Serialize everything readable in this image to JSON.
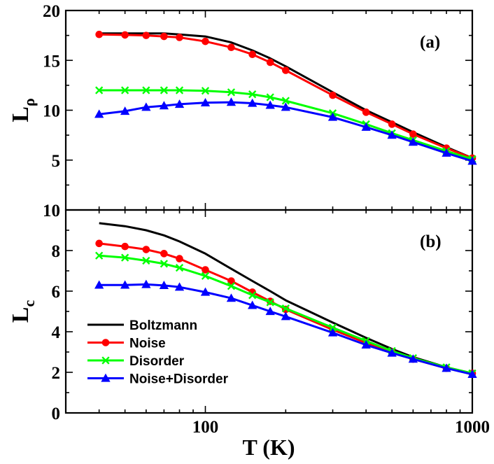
{
  "chart_data": {
    "type": "line",
    "xlabel": "T (K)",
    "xscale": "log",
    "xlim": [
      30,
      1000
    ],
    "xtick_labels": [
      "100",
      "1000"
    ],
    "colors": {
      "Boltzmann": "#000000",
      "Noise": "#ff0000",
      "Disorder": "#00ff00",
      "Noise+Disorder": "#0000ff"
    },
    "markers": {
      "Boltzmann": "none",
      "Noise": "circle",
      "Disorder": "x",
      "Noise+Disorder": "triangle"
    },
    "panels": [
      {
        "label": "(a)",
        "ylabel_main": "L",
        "ylabel_sub": "ρ",
        "ylim": [
          0,
          20
        ],
        "yticks": [
          5,
          10,
          15,
          20
        ],
        "ytick_labels": [
          "5",
          "10",
          "15",
          "20"
        ],
        "series": [
          {
            "name": "Boltzmann",
            "x": [
              40,
              50,
              60,
              70,
              80,
              100,
              125,
              150,
              175,
              200,
              300,
              400,
              500,
              600,
              800,
              1000
            ],
            "y": [
              17.7,
              17.7,
              17.7,
              17.7,
              17.6,
              17.4,
              16.8,
              16.0,
              15.2,
              14.4,
              11.8,
              10.0,
              8.8,
              7.8,
              6.3,
              5.2
            ]
          },
          {
            "name": "Noise",
            "x": [
              40,
              50,
              60,
              70,
              80,
              100,
              125,
              150,
              175,
              200,
              300,
              400,
              500,
              600,
              800,
              1000
            ],
            "y": [
              17.6,
              17.55,
              17.5,
              17.4,
              17.3,
              16.9,
              16.3,
              15.6,
              14.8,
              14.0,
              11.5,
              9.8,
              8.6,
              7.6,
              6.2,
              5.2
            ]
          },
          {
            "name": "Disorder",
            "x": [
              40,
              50,
              60,
              70,
              80,
              100,
              125,
              150,
              175,
              200,
              300,
              400,
              500,
              600,
              800,
              1000
            ],
            "y": [
              12.0,
              12.0,
              12.0,
              12.0,
              12.0,
              11.95,
              11.8,
              11.6,
              11.3,
              10.95,
              9.7,
              8.6,
              7.7,
              7.0,
              5.9,
              5.1
            ]
          },
          {
            "name": "Noise+Disorder",
            "x": [
              40,
              50,
              60,
              70,
              80,
              100,
              125,
              150,
              175,
              200,
              300,
              400,
              500,
              600,
              800,
              1000
            ],
            "y": [
              9.6,
              9.9,
              10.3,
              10.45,
              10.6,
              10.75,
              10.8,
              10.7,
              10.5,
              10.3,
              9.3,
              8.3,
              7.5,
              6.8,
              5.7,
              4.9
            ]
          }
        ]
      },
      {
        "label": "(b)",
        "ylabel_main": "L",
        "ylabel_sub": "c",
        "ylim": [
          0,
          10
        ],
        "yticks": [
          0,
          2,
          4,
          6,
          8,
          10
        ],
        "ytick_labels": [
          "0",
          "2",
          "4",
          "6",
          "8",
          "10"
        ],
        "legend_position": "left-center",
        "series": [
          {
            "name": "Boltzmann",
            "x": [
              40,
              50,
              60,
              70,
              80,
              100,
              125,
              150,
              175,
              200,
              300,
              400,
              500,
              600,
              800,
              1000
            ],
            "y": [
              9.35,
              9.2,
              9.0,
              8.75,
              8.45,
              7.85,
              7.1,
              6.5,
              6.0,
              5.55,
              4.45,
              3.7,
              3.15,
              2.75,
              2.25,
              1.95
            ]
          },
          {
            "name": "Noise",
            "x": [
              40,
              50,
              60,
              70,
              80,
              100,
              125,
              150,
              175,
              200,
              300,
              400,
              500,
              600,
              800,
              1000
            ],
            "y": [
              8.35,
              8.2,
              8.05,
              7.85,
              7.6,
              7.05,
              6.5,
              5.95,
              5.5,
              5.1,
              4.1,
              3.45,
              3.0,
              2.65,
              2.2,
              1.95
            ]
          },
          {
            "name": "Disorder",
            "x": [
              40,
              50,
              60,
              70,
              80,
              100,
              125,
              150,
              175,
              200,
              300,
              400,
              500,
              600,
              800,
              1000
            ],
            "y": [
              7.75,
              7.65,
              7.5,
              7.35,
              7.15,
              6.75,
              6.25,
              5.8,
              5.45,
              5.15,
              4.2,
              3.55,
              3.05,
              2.7,
              2.25,
              1.95
            ]
          },
          {
            "name": "Noise+Disorder",
            "x": [
              40,
              50,
              60,
              70,
              80,
              100,
              125,
              150,
              175,
              200,
              300,
              400,
              500,
              600,
              800,
              1000
            ],
            "y": [
              6.3,
              6.3,
              6.33,
              6.28,
              6.2,
              5.95,
              5.65,
              5.3,
              5.0,
              4.75,
              3.95,
              3.35,
              2.95,
              2.65,
              2.2,
              1.9
            ]
          }
        ]
      }
    ]
  }
}
